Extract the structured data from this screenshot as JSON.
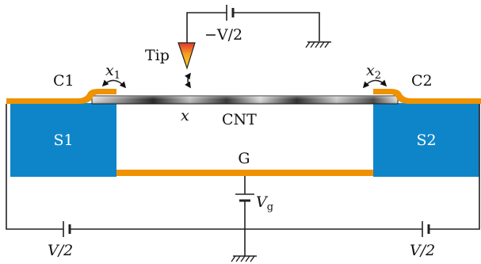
{
  "colors": {
    "orange": "#ee9200",
    "blue": "#0f85c9",
    "cnt_light": "#e8e8e8",
    "cnt_dark": "#111111",
    "tip_red": "#e3342f",
    "tip_yellow": "#ffd21f",
    "wire": "#222222"
  },
  "labels": {
    "tip": "Tip",
    "tip_voltage": "−V/2",
    "c1": "C1",
    "c2": "C2",
    "x1_var": "x",
    "x1_sub": "1",
    "x2_var": "x",
    "x2_sub": "2",
    "x_var": "x",
    "cnt": "CNT",
    "s1": "S1",
    "s2": "S2",
    "gate": "G",
    "vg_var": "V",
    "vg_sub": "g",
    "left_bias": "V/2",
    "right_bias": "V/2"
  }
}
